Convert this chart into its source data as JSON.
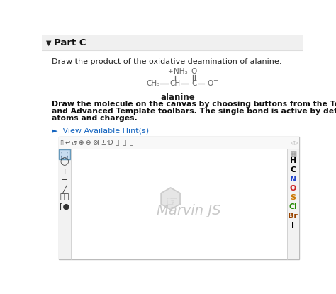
{
  "bg_color": "#f5f5f5",
  "white": "#ffffff",
  "title_text": "Part C",
  "question_text": "Draw the product of the oxidative deamination of alanine.",
  "molecule_label": "alanine",
  "molecule_color": "#666666",
  "instructions_line1": "Draw the molecule on the canvas by choosing buttons from the Tools (for bonds), Atoms,",
  "instructions_line2": "and Advanced Template toolbars. The single bond is active by default. Include all hydrogen",
  "instructions_line3": "atoms and charges.",
  "hint_text": "►  View Available Hint(s)",
  "hint_color": "#1565c0",
  "marvin_text": "Marvin JS",
  "marvin_color": "#c8c8c8",
  "right_panel_atoms": [
    "H",
    "C",
    "N",
    "O",
    "S",
    "Cl",
    "Br",
    "I"
  ],
  "atom_colors": [
    "#000000",
    "#000000",
    "#2244cc",
    "#cc2222",
    "#cc7700",
    "#228800",
    "#994400",
    "#000000"
  ],
  "canvas_border": "#bbbbbb",
  "panel_bg": "#f2f2f2",
  "selected_bg": "#c8dcf0",
  "selected_border": "#6699bb",
  "toolbar_sep": "#cccccc",
  "header_bg": "#f0f0f0",
  "header_line": "#dddddd"
}
